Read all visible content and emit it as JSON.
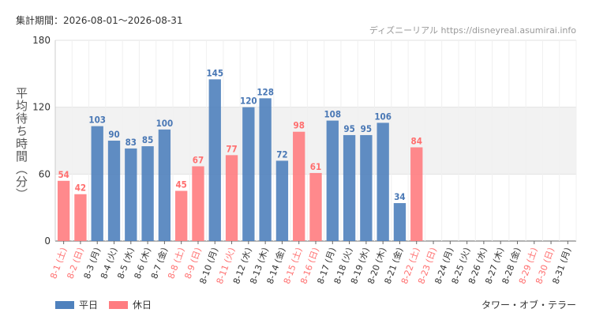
{
  "header": {
    "period_label": "集計期間：2026-08-01〜2026-08-31",
    "source": "ディズニーリアル https://disneyreal.asumirai.info"
  },
  "footer": {
    "attraction_name": "タワー・オブ・テラー"
  },
  "colors": {
    "weekday": "#4f81bd",
    "holiday": "#ff7c80",
    "holiday_label": "#ff6f6f",
    "weekday_label": "#4a78b5"
  },
  "chart_data": {
    "type": "bar",
    "title": "",
    "xlabel": "",
    "ylabel": "平均待ち時間（分）",
    "ylim": [
      0,
      180
    ],
    "yticks": [
      0,
      60,
      120,
      180
    ],
    "highlight_band": [
      60,
      120
    ],
    "legend_position": "bottom-left",
    "legend": [
      {
        "name": "平日",
        "kind": "weekday"
      },
      {
        "name": "休日",
        "kind": "holiday"
      }
    ],
    "categories": [
      "8-1 (土)",
      "8-2 (日)",
      "8-3 (月)",
      "8-4 (火)",
      "8-5 (水)",
      "8-6 (木)",
      "8-7 (金)",
      "8-8 (土)",
      "8-9 (日)",
      "8-10 (月)",
      "8-11 (火)",
      "8-12 (水)",
      "8-13 (木)",
      "8-14 (金)",
      "8-15 (土)",
      "8-16 (日)",
      "8-17 (月)",
      "8-18 (火)",
      "8-19 (水)",
      "8-20 (木)",
      "8-21 (金)",
      "8-22 (土)",
      "8-23 (日)",
      "8-24 (月)",
      "8-25 (火)",
      "8-26 (水)",
      "8-27 (木)",
      "8-28 (金)",
      "8-29 (土)",
      "8-30 (日)",
      "8-31 (月)"
    ],
    "values": [
      54,
      42,
      103,
      90,
      83,
      85,
      100,
      45,
      67,
      145,
      77,
      120,
      128,
      72,
      98,
      61,
      108,
      95,
      95,
      106,
      34,
      84,
      null,
      null,
      null,
      null,
      null,
      null,
      null,
      null,
      null
    ],
    "day_kind": [
      "holiday",
      "holiday",
      "weekday",
      "weekday",
      "weekday",
      "weekday",
      "weekday",
      "holiday",
      "holiday",
      "weekday",
      "holiday",
      "weekday",
      "weekday",
      "weekday",
      "holiday",
      "holiday",
      "weekday",
      "weekday",
      "weekday",
      "weekday",
      "weekday",
      "holiday",
      "holiday",
      "weekday",
      "weekday",
      "weekday",
      "weekday",
      "weekday",
      "holiday",
      "holiday",
      "weekday"
    ]
  }
}
